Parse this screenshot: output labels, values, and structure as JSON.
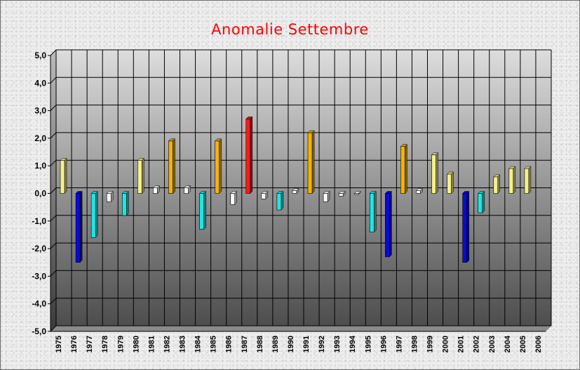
{
  "chart_data": {
    "type": "bar",
    "title": "Anomalie Settembre",
    "categories": [
      "1975",
      "1976",
      "1977",
      "1978",
      "1979",
      "1980",
      "1981",
      "1982",
      "1983",
      "1984",
      "1985",
      "1986",
      "1987",
      "1988",
      "1989",
      "1990",
      "1991",
      "1992",
      "1993",
      "1994",
      "1995",
      "1996",
      "1997",
      "1998",
      "1999",
      "2000",
      "2001",
      "2002",
      "2003",
      "2004",
      "2005",
      "2006"
    ],
    "values": [
      1.2,
      -2.5,
      -1.6,
      -0.3,
      -0.8,
      1.2,
      0.2,
      1.9,
      0.2,
      -1.3,
      1.9,
      -0.4,
      2.7,
      -0.2,
      -0.6,
      0.1,
      2.2,
      -0.3,
      -0.1,
      0.0,
      -1.4,
      -2.3,
      1.7,
      0.1,
      1.4,
      0.7,
      -2.5,
      -0.7,
      0.6,
      0.9,
      0.9,
      null
    ],
    "ylim": [
      -5,
      5
    ],
    "yticks": [
      "5,0",
      "4,0",
      "3,0",
      "2,0",
      "1,0",
      "0,0",
      "-1,0",
      "-2,0",
      "-3,0",
      "-4,0",
      "-5,0"
    ],
    "grid": true,
    "colors": {
      "title": "#ff0000",
      "very_high": "#ff1a1a",
      "high": "#f2b400",
      "moderate_high": "#f5ef8c",
      "near_normal": "#ffffff",
      "moderate_low": "#1ee6e6",
      "very_low": "#0a0ad8"
    }
  }
}
